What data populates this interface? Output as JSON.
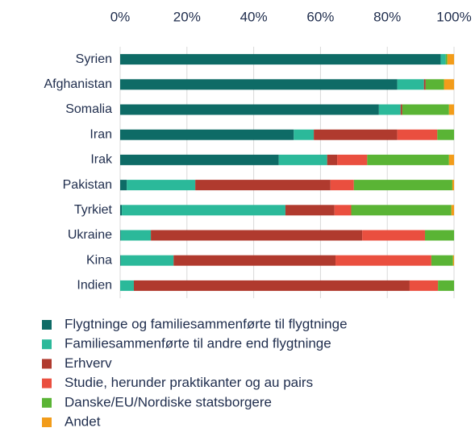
{
  "chart_data": {
    "type": "stacked-barh",
    "categories": [
      "Syrien",
      "Afghanistan",
      "Somalia",
      "Iran",
      "Irak",
      "Pakistan",
      "Tyrkiet",
      "Ukraine",
      "Kina",
      "Indien"
    ],
    "series": [
      {
        "name": "Flygtninge og familiesammenførte til flygtninge",
        "color": "#0e6b66",
        "values": [
          96,
          83,
          77.5,
          52,
          47.5,
          2,
          0.5,
          0.2,
          0.2,
          0
        ]
      },
      {
        "name": "Familiesammenførte til andre end flygtninge",
        "color": "#2bb99a",
        "values": [
          1.5,
          8,
          6.5,
          6,
          14.5,
          20.5,
          49,
          9,
          15.8,
          4.1
        ]
      },
      {
        "name": "Erhverv",
        "color": "#b03a2e",
        "values": [
          0,
          0.5,
          0.5,
          25,
          3,
          40.5,
          14.7,
          63.3,
          48.5,
          82.6
        ]
      },
      {
        "name": "Studie, herunder praktikanter og au pairs",
        "color": "#ea4f3f",
        "values": [
          0,
          0,
          0,
          12,
          9,
          7,
          5,
          18.8,
          28.7,
          8.5
        ]
      },
      {
        "name": "Danske/EU/Nordiske statsborgere",
        "color": "#5ab435",
        "values": [
          0.5,
          5.5,
          14,
          5,
          24.5,
          29.5,
          30,
          8.7,
          6.5,
          4.8
        ]
      },
      {
        "name": "Andet",
        "color": "#f29c1a",
        "values": [
          2,
          3,
          1.5,
          0,
          1.5,
          0.5,
          0.8,
          0,
          0.3,
          0
        ]
      }
    ],
    "xlim": [
      0,
      100
    ],
    "xticks": [
      {
        "value": 0,
        "label": "0%"
      },
      {
        "value": 20,
        "label": "20%"
      },
      {
        "value": 40,
        "label": "40%"
      },
      {
        "value": 60,
        "label": "60%"
      },
      {
        "value": 80,
        "label": "80%"
      },
      {
        "value": 100,
        "label": "100%"
      }
    ],
    "grid": true
  }
}
